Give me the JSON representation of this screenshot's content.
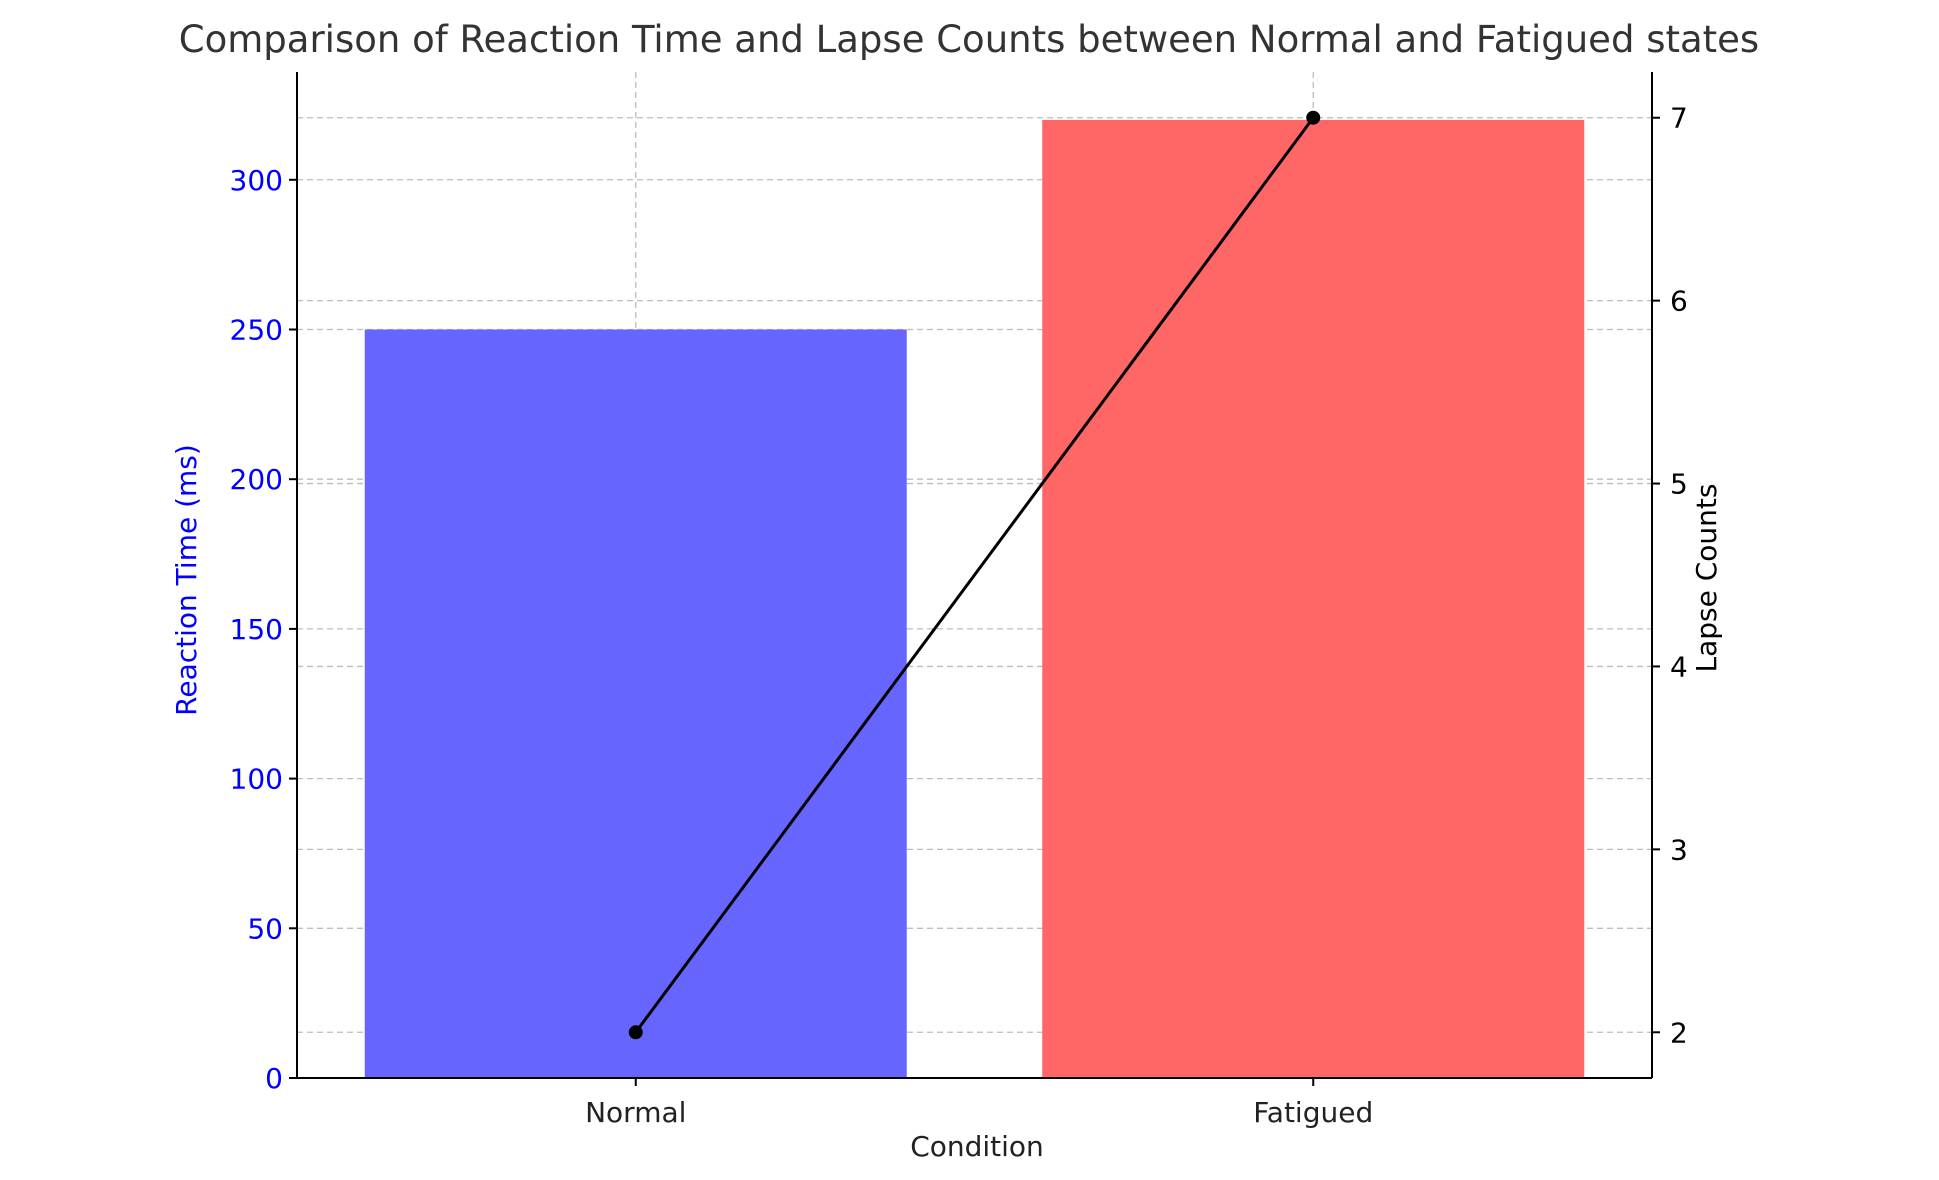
{
  "chart_data": {
    "type": "bar",
    "title": "Comparison of Reaction Time and Lapse Counts between Normal and Fatigued states",
    "xlabel": "Condition",
    "ylabel": "Reaction Time (ms)",
    "y2label": "Lapse Counts",
    "categories": [
      "Normal",
      "Fatigued"
    ],
    "series": [
      {
        "name": "Reaction Time (ms)",
        "type": "bar",
        "axis": "left",
        "values": [
          250,
          320
        ],
        "colors": [
          "#6666ff",
          "#ff6666"
        ]
      },
      {
        "name": "Lapse Counts",
        "type": "line",
        "axis": "right",
        "values": [
          2,
          7
        ],
        "color": "#000000",
        "marker": "circle"
      }
    ],
    "ylim": [
      0,
      336
    ],
    "y2lim": [
      1.75,
      7.25
    ],
    "yticks": [
      0,
      50,
      100,
      150,
      200,
      250,
      300
    ],
    "y2ticks": [
      2,
      3,
      4,
      5,
      6,
      7
    ],
    "grid": true,
    "ylabel_color": "#0000ff",
    "y2label_color": "#000000"
  }
}
